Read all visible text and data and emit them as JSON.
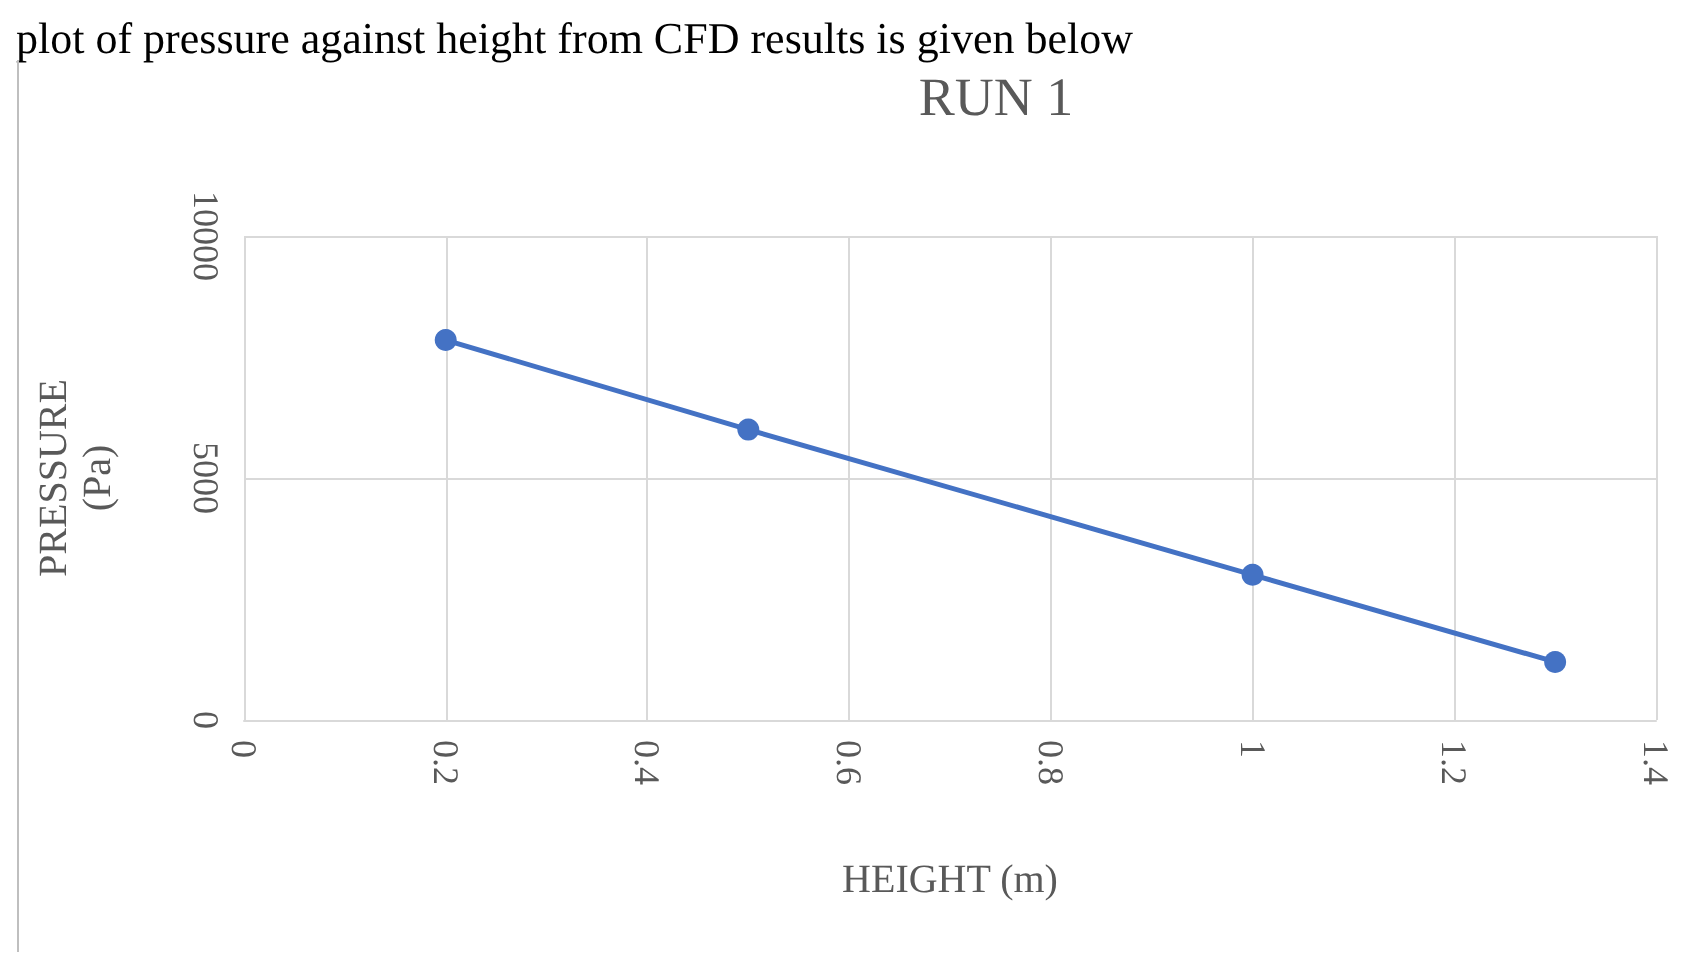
{
  "chart_data": {
    "type": "line",
    "title": "RUN 1",
    "xlabel": "HEIGHT (m)",
    "ylabel": "PRESSURE\n(Pa)",
    "annotations": [
      "plot of pressure against height from CFD results is given below"
    ],
    "x": [
      0.2,
      0.5,
      1,
      1.3
    ],
    "series": [
      {
        "color": "#4472c4",
        "values": [
          7850,
          6000,
          3000,
          1200
        ]
      }
    ],
    "xlim": [
      0,
      1.4
    ],
    "xticks": [
      0,
      0.2,
      0.4,
      0.6,
      0.8,
      1,
      1.2,
      1.4
    ],
    "ylim": [
      0,
      10000
    ],
    "yticks": [
      0,
      5000,
      10000
    ],
    "grid": true,
    "marker": "circle",
    "line_style": "solid"
  }
}
